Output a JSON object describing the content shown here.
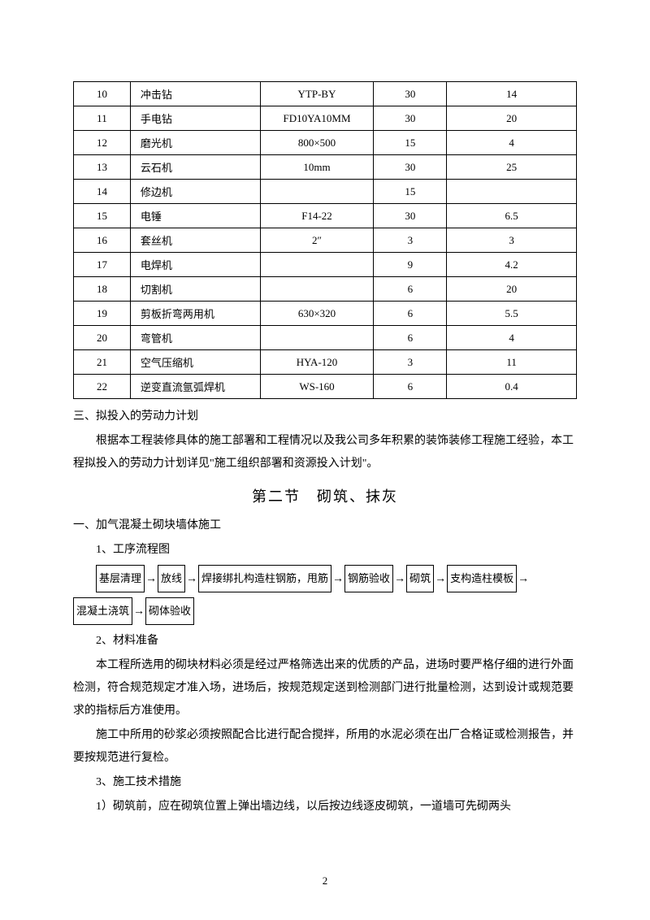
{
  "table": {
    "rows": [
      {
        "n": "10",
        "name": "冲击钻",
        "spec": "YTP-BY",
        "qty": "30",
        "val": "14"
      },
      {
        "n": "11",
        "name": "手电钻",
        "spec": "FD10YA10MM",
        "qty": "30",
        "val": "20"
      },
      {
        "n": "12",
        "name": "磨光机",
        "spec": "800×500",
        "qty": "15",
        "val": "4"
      },
      {
        "n": "13",
        "name": "云石机",
        "spec": "10mm",
        "qty": "30",
        "val": "25"
      },
      {
        "n": "14",
        "name": "修边机",
        "spec": "",
        "qty": "15",
        "val": ""
      },
      {
        "n": "15",
        "name": "电锤",
        "spec": "F14-22",
        "qty": "30",
        "val": "6.5"
      },
      {
        "n": "16",
        "name": "套丝机",
        "spec": "2″",
        "qty": "3",
        "val": "3"
      },
      {
        "n": "17",
        "name": "电焊机",
        "spec": "",
        "qty": "9",
        "val": "4.2"
      },
      {
        "n": "18",
        "name": "切割机",
        "spec": "",
        "qty": "6",
        "val": "20"
      },
      {
        "n": "19",
        "name": "剪板折弯两用机",
        "spec": "630×320",
        "qty": "6",
        "val": "5.5"
      },
      {
        "n": "20",
        "name": "弯管机",
        "spec": "",
        "qty": "6",
        "val": "4"
      },
      {
        "n": "21",
        "name": "空气压缩机",
        "spec": "HYA-120",
        "qty": "3",
        "val": "11"
      },
      {
        "n": "22",
        "name": "逆变直流氩弧焊机",
        "spec": "WS-160",
        "qty": "6",
        "val": "0.4"
      }
    ]
  },
  "heading3": "三、拟投入的劳动力计划",
  "para1": "根据本工程装修具体的施工部署和工程情况以及我公司多年积累的装饰装修工程施工经验，本工程拟投入的劳动力计划详见\"施工组织部署和资源投入计划\"。",
  "section_title": "第二节　砌筑、抹灰",
  "heading_a": "一、加气混凝土砌块墙体施工",
  "sub1": "1、工序流程图",
  "flow": {
    "s1": "基层清理",
    "s2": "放线",
    "s3": "焊接绑扎构造柱钢筋，甩筋",
    "s4": "钢筋验收",
    "s5": "砌筑",
    "s6": "支构造柱模板",
    "s7": "混凝土浇筑",
    "s8": "砌体验收",
    "arrow": "→"
  },
  "sub2": "2、材料准备",
  "para2": "本工程所选用的砌块材料必须是经过严格筛选出来的优质的产品，进场时要严格仔细的进行外面检测，符合规范规定才准入场，进场后，按规范规定送到检测部门进行批量检测，达到设计或规范要求的指标后方准使用。",
  "para3": "施工中所用的砂浆必须按照配合比进行配合搅拌，所用的水泥必须在出厂合格证或检测报告，并要按规范进行复检。",
  "sub3": "3、施工技术措施",
  "para4": "1）砌筑前，应在砌筑位置上弹出墙边线，以后按边线逐皮砌筑，一道墙可先砌两头",
  "page_number": "2"
}
